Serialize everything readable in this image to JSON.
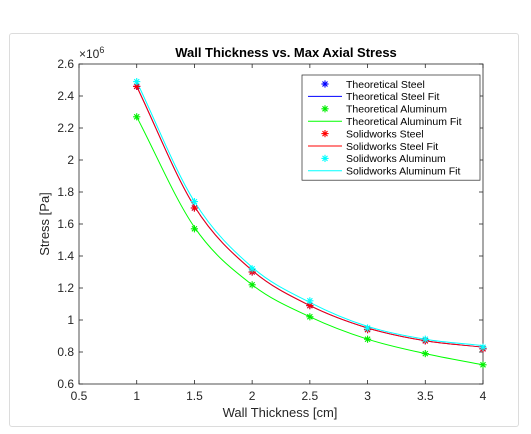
{
  "chart_data": {
    "type": "scatter",
    "title": "Wall Thickness vs. Max Axial Stress",
    "xlabel": "Wall Thickness [cm]",
    "ylabel": "Stress [Pa]",
    "exponent_label": "×10",
    "exponent_power": "6",
    "y_scale": 1000000,
    "xlim": [
      0.5,
      4
    ],
    "ylim": [
      0.6,
      2.6
    ],
    "xticks": [
      "0.5",
      "1",
      "1.5",
      "2",
      "2.5",
      "3",
      "3.5",
      "4"
    ],
    "yticks": [
      "0.6",
      "0.8",
      "1",
      "1.2",
      "1.4",
      "1.6",
      "1.8",
      "2",
      "2.2",
      "2.4",
      "2.6"
    ],
    "grid": false,
    "legend_position": "top-right",
    "x": [
      1,
      1.5,
      2,
      2.5,
      3,
      3.5,
      4
    ],
    "series": [
      {
        "name": "Theoretical Steel",
        "kind": "marker",
        "marker": "*",
        "color": "#0000ff",
        "values": [
          2.46,
          1.7,
          1.3,
          1.09,
          0.94,
          0.87,
          0.82
        ]
      },
      {
        "name": "Theoretical Steel Fit",
        "kind": "line",
        "color": "#0000ff",
        "values": [
          2.46,
          1.71,
          1.31,
          1.09,
          0.95,
          0.87,
          0.83
        ]
      },
      {
        "name": "Theoretical Aluminum",
        "kind": "marker",
        "marker": "*",
        "color": "#00ee00",
        "values": [
          2.27,
          1.57,
          1.22,
          1.02,
          0.88,
          0.79,
          0.72
        ]
      },
      {
        "name": "Theoretical Aluminum Fit",
        "kind": "line",
        "color": "#00ff00",
        "values": [
          2.27,
          1.58,
          1.22,
          1.02,
          0.88,
          0.79,
          0.72
        ]
      },
      {
        "name": "Solidworks Steel",
        "kind": "marker",
        "marker": "*",
        "color": "#ff0000",
        "values": [
          2.46,
          1.7,
          1.3,
          1.09,
          0.94,
          0.87,
          0.82
        ]
      },
      {
        "name": "Solidworks Steel Fit",
        "kind": "line",
        "color": "#ff0000",
        "values": [
          2.46,
          1.71,
          1.31,
          1.09,
          0.95,
          0.87,
          0.83
        ]
      },
      {
        "name": "Solidworks Aluminum",
        "kind": "marker",
        "marker": "*",
        "color": "#00ffff",
        "values": [
          2.49,
          1.74,
          1.32,
          1.12,
          0.95,
          0.88,
          0.83
        ]
      },
      {
        "name": "Solidworks Aluminum Fit",
        "kind": "line",
        "color": "#00ffff",
        "values": [
          2.49,
          1.74,
          1.33,
          1.11,
          0.96,
          0.88,
          0.84
        ]
      }
    ]
  }
}
